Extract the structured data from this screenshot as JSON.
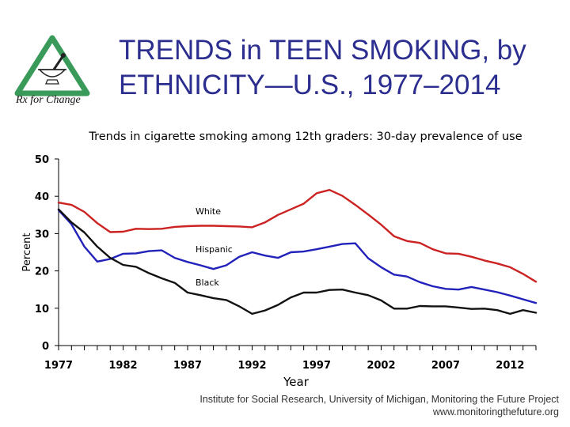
{
  "header": {
    "title_line1": "TRENDS in TEEN SMOKING, by",
    "title_line2": "ETHNICITY—U.S., 1977–2014",
    "logo_text": "Rx for Change"
  },
  "source": {
    "line1": "Institute for Social Research, University of Michigan, Monitoring the Future Project",
    "line2": "www.monitoringthefuture.org"
  },
  "colors": {
    "white_series": "#cc2222",
    "hispanic_series": "#2222bb",
    "black_series": "#111111",
    "title": "#2b2e8f",
    "logo_green": "#3a9a5a"
  },
  "chart_data": {
    "type": "line",
    "title": "Trends in cigarette smoking among 12th graders: 30-day prevalence of use",
    "xlabel": "Year",
    "ylabel": "Percent",
    "xlim": [
      1977,
      2014
    ],
    "ylim": [
      0,
      50
    ],
    "yticks": [
      "0",
      "10",
      "20",
      "30",
      "40",
      "50"
    ],
    "xticks": [
      "1977",
      "1982",
      "1987",
      "1992",
      "1997",
      "2002",
      "2007",
      "2012"
    ],
    "x": [
      1977,
      1978,
      1979,
      1980,
      1981,
      1982,
      1983,
      1984,
      1985,
      1986,
      1987,
      1988,
      1989,
      1990,
      1991,
      1992,
      1993,
      1994,
      1995,
      1996,
      1997,
      1998,
      1999,
      2000,
      2001,
      2002,
      2003,
      2004,
      2005,
      2006,
      2007,
      2008,
      2009,
      2010,
      2011,
      2012,
      2013,
      2014
    ],
    "series": [
      {
        "name": "White",
        "values": [
          38.3,
          37.7,
          35.8,
          32.8,
          30.4,
          30.5,
          31.3,
          31.2,
          31.3,
          31.8,
          32.0,
          32.1,
          32.1,
          32.0,
          31.9,
          31.7,
          33.0,
          35.0,
          36.5,
          38.0,
          40.8,
          41.7,
          40.1,
          37.7,
          35.1,
          32.4,
          29.3,
          28.0,
          27.5,
          25.8,
          24.7,
          24.6,
          23.8,
          22.8,
          22.0,
          21.0,
          19.2,
          17.1
        ]
      },
      {
        "name": "Hispanic",
        "values": [
          36.3,
          32.5,
          26.5,
          22.5,
          23.2,
          24.6,
          24.7,
          25.3,
          25.5,
          23.5,
          22.4,
          21.5,
          20.5,
          21.5,
          23.8,
          25.0,
          24.1,
          23.5,
          25.0,
          25.2,
          25.8,
          26.5,
          27.2,
          27.4,
          23.4,
          21.0,
          19.0,
          18.5,
          17.0,
          15.9,
          15.2,
          15.0,
          15.7,
          15.0,
          14.3,
          13.4,
          12.4,
          11.4
        ]
      },
      {
        "name": "Black",
        "values": [
          36.5,
          33.0,
          30.3,
          26.5,
          23.5,
          21.6,
          21.1,
          19.4,
          18.0,
          16.8,
          14.2,
          13.5,
          12.7,
          12.2,
          10.5,
          8.5,
          9.4,
          10.9,
          12.9,
          14.2,
          14.2,
          14.9,
          15.0,
          14.2,
          13.5,
          12.1,
          9.9,
          9.9,
          10.6,
          10.5,
          10.5,
          10.2,
          9.8,
          9.9,
          9.5,
          8.5,
          9.5,
          8.8
        ]
      }
    ]
  }
}
